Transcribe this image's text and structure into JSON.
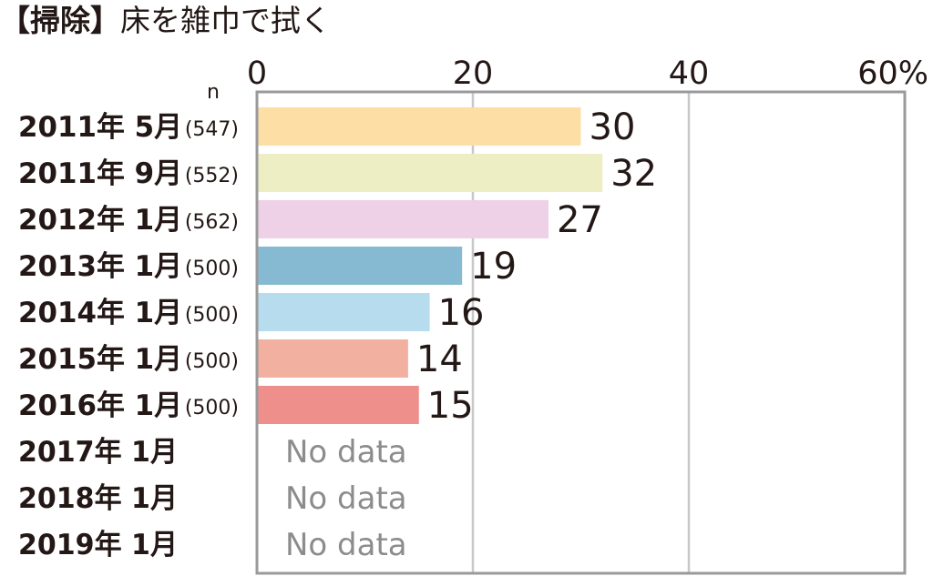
{
  "title": {
    "bracket_open": "【",
    "category": "掃除",
    "bracket_close": "】",
    "activity": "床を雑巾で拭く"
  },
  "n_label": "n",
  "no_data_label": "No data",
  "colors": {
    "frame": "#9a9a9a",
    "grid": "#c8c8c8",
    "text": "#231815",
    "no_data_text": "#8c8c8c"
  },
  "chart_data": {
    "type": "bar",
    "orientation": "horizontal",
    "xlim": [
      0,
      60
    ],
    "ticks": [
      "0",
      "20",
      "40",
      "60%"
    ],
    "tick_values": [
      0,
      20,
      40,
      60
    ],
    "grid": true,
    "categories": [
      {
        "label": "2011年 5月",
        "n": "(547)",
        "value": 30,
        "color": "#fddfa5"
      },
      {
        "label": "2011年 9月",
        "n": "(552)",
        "value": 32,
        "color": "#eeeec4"
      },
      {
        "label": "2012年 1月",
        "n": "(562)",
        "value": 27,
        "color": "#eed0e7"
      },
      {
        "label": "2013年 1月",
        "n": "(500)",
        "value": 19,
        "color": "#86bad2"
      },
      {
        "label": "2014年 1月",
        "n": "(500)",
        "value": 16,
        "color": "#b6dcee"
      },
      {
        "label": "2015年 1月",
        "n": "(500)",
        "value": 14,
        "color": "#f2b0a0"
      },
      {
        "label": "2016年 1月",
        "n": "(500)",
        "value": 15,
        "color": "#ee8f8c"
      },
      {
        "label": "2017年 1月",
        "n": "",
        "value": null,
        "color": ""
      },
      {
        "label": "2018年 1月",
        "n": "",
        "value": null,
        "color": ""
      },
      {
        "label": "2019年 1月",
        "n": "",
        "value": null,
        "color": ""
      }
    ]
  }
}
